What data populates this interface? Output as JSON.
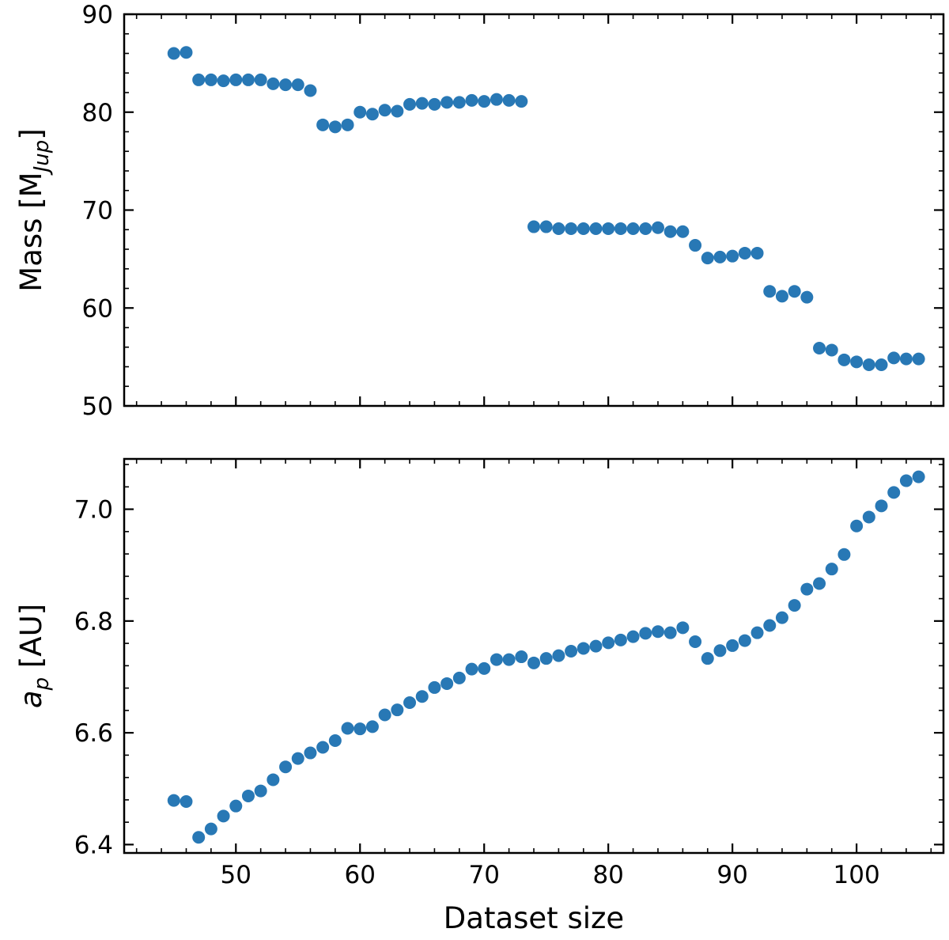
{
  "chart_data": [
    {
      "type": "scatter",
      "panel": "top",
      "ylabel": "Mass [M",
      "ylabel_subscript": "Jup",
      "ylabel_suffix": "]",
      "xlabel": "",
      "xlim": [
        41,
        107
      ],
      "ylim": [
        50,
        90
      ],
      "xticks": [
        50,
        60,
        70,
        80,
        90,
        100
      ],
      "xtick_labels": [
        "",
        "",
        "",
        "",
        "",
        ""
      ],
      "yticks": [
        50,
        60,
        70,
        80,
        90
      ],
      "ytick_labels": [
        "50",
        "60",
        "70",
        "80",
        "90"
      ],
      "marker_color": "#2878b5",
      "series": [
        {
          "name": "Mass",
          "x": [
            45,
            46,
            47,
            48,
            49,
            50,
            51,
            52,
            53,
            54,
            55,
            56,
            57,
            58,
            59,
            60,
            61,
            62,
            63,
            64,
            65,
            66,
            67,
            68,
            69,
            70,
            71,
            72,
            73,
            74,
            75,
            76,
            77,
            78,
            79,
            80,
            81,
            82,
            83,
            84,
            85,
            86,
            87,
            88,
            89,
            90,
            91,
            92,
            93,
            94,
            95,
            96,
            97,
            98,
            99,
            100,
            101,
            102,
            103,
            104,
            105
          ],
          "y": [
            86.0,
            86.1,
            83.3,
            83.3,
            83.2,
            83.3,
            83.3,
            83.3,
            82.9,
            82.8,
            82.8,
            82.2,
            78.7,
            78.5,
            78.7,
            80.0,
            79.8,
            80.2,
            80.1,
            80.8,
            80.9,
            80.8,
            81.0,
            81.0,
            81.2,
            81.1,
            81.3,
            81.2,
            81.1,
            68.3,
            68.3,
            68.1,
            68.1,
            68.1,
            68.1,
            68.1,
            68.1,
            68.1,
            68.1,
            68.2,
            67.8,
            67.8,
            66.4,
            65.1,
            65.2,
            65.3,
            65.6,
            65.6,
            61.7,
            61.2,
            61.7,
            61.1,
            55.9,
            55.7,
            54.7,
            54.5,
            54.2,
            54.2,
            54.9,
            54.8,
            54.8
          ]
        }
      ]
    },
    {
      "type": "scatter",
      "panel": "bottom",
      "ylabel": "a",
      "ylabel_subscript": "p",
      "ylabel_suffix": " [AU]",
      "xlabel": "Dataset size",
      "xlim": [
        41,
        107
      ],
      "ylim": [
        6.385,
        7.09
      ],
      "xticks": [
        50,
        60,
        70,
        80,
        90,
        100
      ],
      "xtick_labels": [
        "50",
        "60",
        "70",
        "80",
        "90",
        "100"
      ],
      "yticks": [
        6.4,
        6.6,
        6.8,
        7.0
      ],
      "ytick_labels": [
        "6.4",
        "6.6",
        "6.8",
        "7.0"
      ],
      "marker_color": "#2878b5",
      "series": [
        {
          "name": "a_p",
          "x": [
            45,
            46,
            47,
            48,
            49,
            50,
            51,
            52,
            53,
            54,
            55,
            56,
            57,
            58,
            59,
            60,
            61,
            62,
            63,
            64,
            65,
            66,
            67,
            68,
            69,
            70,
            71,
            72,
            73,
            74,
            75,
            76,
            77,
            78,
            79,
            80,
            81,
            82,
            83,
            84,
            85,
            86,
            87,
            88,
            89,
            90,
            91,
            92,
            93,
            94,
            95,
            96,
            97,
            98,
            99,
            100,
            101,
            102,
            103,
            104,
            105
          ],
          "y": [
            6.479,
            6.477,
            6.413,
            6.428,
            6.451,
            6.469,
            6.487,
            6.496,
            6.516,
            6.539,
            6.554,
            6.564,
            6.574,
            6.586,
            6.608,
            6.607,
            6.611,
            6.632,
            6.641,
            6.654,
            6.665,
            6.681,
            6.688,
            6.698,
            6.714,
            6.715,
            6.731,
            6.731,
            6.736,
            6.725,
            6.733,
            6.738,
            6.746,
            6.751,
            6.755,
            6.761,
            6.766,
            6.772,
            6.778,
            6.781,
            6.779,
            6.788,
            6.763,
            6.733,
            6.747,
            6.756,
            6.765,
            6.779,
            6.792,
            6.806,
            6.828,
            6.857,
            6.867,
            6.893,
            6.919,
            6.97,
            6.986,
            7.006,
            7.03,
            7.051,
            7.058
          ]
        }
      ]
    }
  ]
}
